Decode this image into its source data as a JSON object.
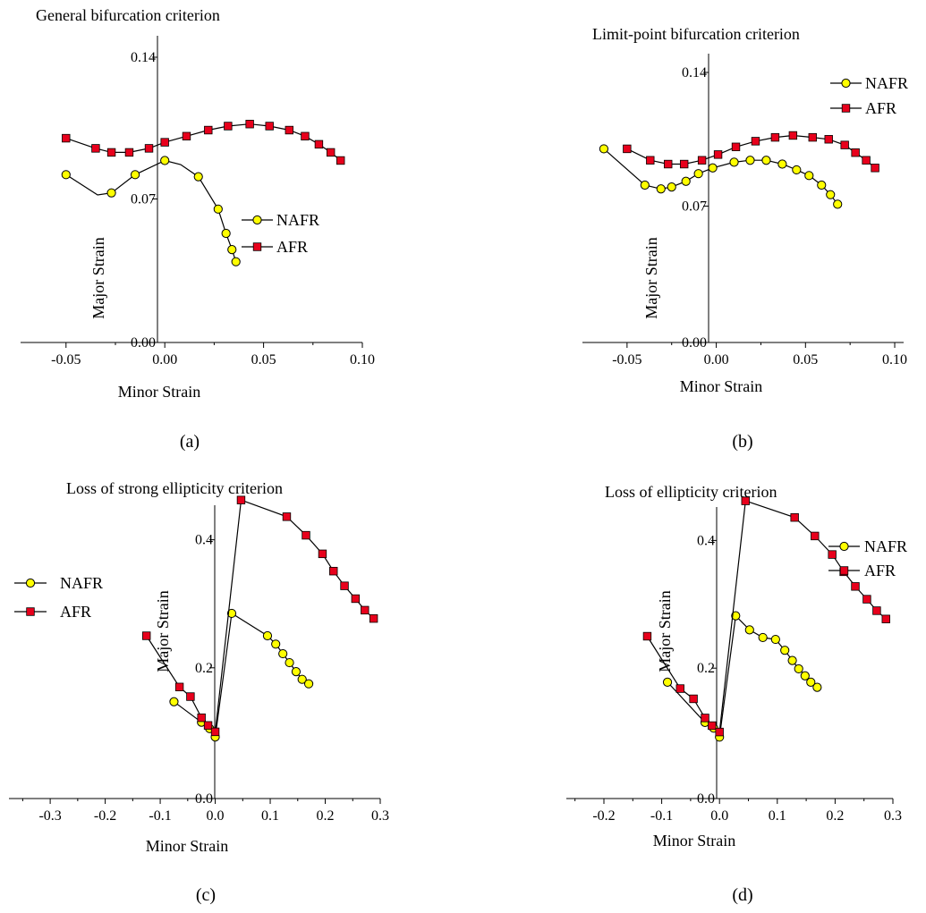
{
  "colors": {
    "nafr_fill": "#ffff00",
    "afr_fill": "#e8001c",
    "axis": "#000000",
    "marker_stroke": "#000000"
  },
  "chart_data": [
    {
      "type": "line",
      "title": "General bifurcation criterion",
      "panel_label": "(a)",
      "xlabel": "Minor Strain",
      "ylabel": "Major Strain",
      "xlim": [
        -0.073,
        0.1
      ],
      "ylim": [
        0,
        0.14
      ],
      "x_ticks": [
        -0.05,
        0.0,
        0.05,
        0.1
      ],
      "x_tick_labels": [
        "-0.05",
        "0.00",
        "0.05",
        "0.10"
      ],
      "y_ticks": [
        0.0,
        0.07,
        0.14
      ],
      "y_tick_labels": [
        "0.00",
        "0.07",
        "0.14"
      ],
      "legend": "right",
      "series": [
        {
          "name": "NAFR",
          "marker": "circle",
          "line_points": [
            [
              -0.05,
              0.082
            ],
            [
              -0.034,
              0.072
            ],
            [
              -0.027,
              0.073
            ],
            [
              -0.015,
              0.082
            ],
            [
              0.0,
              0.089
            ],
            [
              0.008,
              0.087
            ],
            [
              0.017,
              0.081
            ],
            [
              0.027,
              0.065
            ],
            [
              0.031,
              0.053
            ],
            [
              0.034,
              0.045
            ],
            [
              0.036,
              0.039
            ]
          ],
          "x": [
            -0.05,
            -0.027,
            -0.015,
            0.0,
            0.017,
            0.027,
            0.031,
            0.034,
            0.036
          ],
          "y": [
            0.082,
            0.073,
            0.082,
            0.089,
            0.081,
            0.065,
            0.053,
            0.045,
            0.039
          ]
        },
        {
          "name": "AFR",
          "marker": "square",
          "x": [
            -0.05,
            -0.035,
            -0.027,
            -0.018,
            -0.008,
            0.0,
            0.011,
            0.022,
            0.032,
            0.043,
            0.053,
            0.063,
            0.071,
            0.078,
            0.084,
            0.089
          ],
          "y": [
            0.1,
            0.095,
            0.093,
            0.093,
            0.095,
            0.098,
            0.101,
            0.104,
            0.106,
            0.107,
            0.106,
            0.104,
            0.101,
            0.097,
            0.093,
            0.089
          ]
        }
      ]
    },
    {
      "type": "line",
      "title": "Limit-point bifurcation criterion",
      "panel_label": "(b)",
      "xlabel": "Minor Strain",
      "ylabel": "Major Strain",
      "xlim": [
        -0.075,
        0.105
      ],
      "ylim": [
        0,
        0.14
      ],
      "x_ticks": [
        -0.05,
        0.0,
        0.05,
        0.1
      ],
      "x_tick_labels": [
        "-0.05",
        "0.00",
        "0.05",
        "0.10"
      ],
      "y_ticks": [
        0.0,
        0.07,
        0.14
      ],
      "y_tick_labels": [
        "0.00",
        "0.07",
        "0.14"
      ],
      "legend": "top-right",
      "series": [
        {
          "name": "NAFR",
          "marker": "circle",
          "x": [
            -0.063,
            -0.04,
            -0.031,
            -0.025,
            -0.017,
            -0.01,
            -0.002,
            0.01,
            0.019,
            0.028,
            0.037,
            0.045,
            0.052,
            0.059,
            0.064,
            0.068
          ],
          "y": [
            0.1,
            0.081,
            0.079,
            0.08,
            0.083,
            0.087,
            0.09,
            0.093,
            0.094,
            0.094,
            0.092,
            0.089,
            0.086,
            0.081,
            0.076,
            0.071
          ]
        },
        {
          "name": "AFR",
          "marker": "square",
          "x": [
            -0.05,
            -0.037,
            -0.027,
            -0.018,
            -0.008,
            0.001,
            0.011,
            0.022,
            0.033,
            0.043,
            0.054,
            0.063,
            0.072,
            0.078,
            0.084,
            0.089
          ],
          "y": [
            0.1,
            0.094,
            0.092,
            0.092,
            0.094,
            0.097,
            0.101,
            0.104,
            0.106,
            0.107,
            0.106,
            0.105,
            0.102,
            0.098,
            0.094,
            0.09
          ]
        }
      ]
    },
    {
      "type": "line",
      "title": "Loss of strong ellipticity criterion",
      "panel_label": "(c)",
      "xlabel": "Minor Strain",
      "ylabel": "Major Strain",
      "xlim": [
        -0.375,
        0.3
      ],
      "ylim": [
        0,
        0.5
      ],
      "x_ticks": [
        -0.3,
        -0.2,
        -0.1,
        0.0,
        0.1,
        0.2,
        0.3
      ],
      "x_tick_labels": [
        "-0.3",
        "-0.2",
        "-0.1",
        "0.0",
        "0.1",
        "0.2",
        "0.3"
      ],
      "y_ticks": [
        0.0,
        0.2,
        0.4
      ],
      "y_tick_labels": [
        "0.0",
        "0.2",
        "0.4"
      ],
      "legend": "left",
      "series": [
        {
          "name": "NAFR",
          "marker": "circle",
          "x": [
            -0.075,
            -0.025,
            -0.01,
            0.0,
            0.03,
            0.095,
            0.11,
            0.123,
            0.135,
            0.147,
            0.158,
            0.17
          ],
          "y": [
            0.147,
            0.115,
            0.105,
            0.092,
            0.285,
            0.25,
            0.237,
            0.222,
            0.208,
            0.194,
            0.182,
            0.175
          ]
        },
        {
          "name": "AFR",
          "marker": "square",
          "x": [
            -0.125,
            -0.065,
            -0.045,
            -0.025,
            -0.013,
            0.0,
            0.047,
            0.13,
            0.165,
            0.195,
            0.215,
            0.235,
            0.255,
            0.272,
            0.288
          ],
          "y": [
            0.25,
            0.17,
            0.155,
            0.122,
            0.11,
            0.1,
            0.462,
            0.436,
            0.407,
            0.378,
            0.351,
            0.328,
            0.308,
            0.29,
            0.277
          ]
        }
      ]
    },
    {
      "type": "line",
      "title": "Loss of ellipticity criterion",
      "panel_label": "(d)",
      "xlabel": "Minor Strain",
      "ylabel": "Major Strain",
      "xlim": [
        -0.265,
        0.3
      ],
      "ylim": [
        0,
        0.5
      ],
      "x_ticks": [
        -0.2,
        -0.1,
        0.0,
        0.1,
        0.2,
        0.3
      ],
      "x_tick_labels": [
        "-0.2",
        "-0.1",
        "0.0",
        "0.1",
        "0.2",
        "0.3"
      ],
      "y_ticks": [
        0.0,
        0.2,
        0.4
      ],
      "y_tick_labels": [
        "0.0",
        "0.2",
        "0.4"
      ],
      "legend": "top-right",
      "series": [
        {
          "name": "NAFR",
          "marker": "circle",
          "x": [
            -0.09,
            -0.025,
            -0.01,
            0.0,
            0.028,
            0.052,
            0.075,
            0.097,
            0.113,
            0.126,
            0.137,
            0.148,
            0.158,
            0.169
          ],
          "y": [
            0.178,
            0.115,
            0.106,
            0.092,
            0.282,
            0.26,
            0.248,
            0.245,
            0.228,
            0.212,
            0.199,
            0.188,
            0.178,
            0.17
          ]
        },
        {
          "name": "AFR",
          "marker": "square",
          "x": [
            -0.125,
            -0.068,
            -0.045,
            -0.025,
            -0.013,
            0.0,
            0.045,
            0.13,
            0.165,
            0.195,
            0.215,
            0.235,
            0.255,
            0.272,
            0.288
          ],
          "y": [
            0.25,
            0.168,
            0.152,
            0.122,
            0.11,
            0.1,
            0.462,
            0.436,
            0.407,
            0.378,
            0.351,
            0.328,
            0.308,
            0.29,
            0.277
          ]
        }
      ]
    }
  ]
}
